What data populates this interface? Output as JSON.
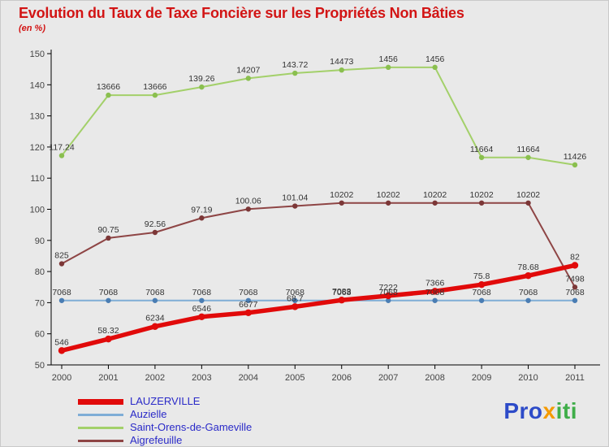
{
  "header": {
    "title": "Evolution du Taux de Taxe Foncière sur les Propriétés Non Bâties",
    "subtitle": "(en %)"
  },
  "chart_data": {
    "type": "line",
    "x": [
      2000,
      2001,
      2002,
      2003,
      2004,
      2005,
      2006,
      2007,
      2008,
      2009,
      2010,
      2011
    ],
    "ylim": [
      50,
      150
    ],
    "ytick_step": 10,
    "grid": false,
    "axis_color": "#000000",
    "label_color": "#333333",
    "series": [
      {
        "name": "Saint-Orens-de-Gameville",
        "color": "#a3d06a",
        "dot_color": "#8abf4f",
        "width": 2,
        "dot": 3.2,
        "values": [
          117.24,
          136.66,
          136.66,
          139.26,
          142.07,
          143.72,
          144.73,
          145.6,
          145.6,
          116.64,
          116.64,
          114.26
        ],
        "labels": [
          "117.24",
          "13666",
          "13666",
          "139.26",
          "14207",
          "143.72",
          "14473",
          "1456",
          "1456",
          "11664",
          "11664",
          "11426"
        ]
      },
      {
        "name": "Aigrefeuille",
        "color": "#8e4545",
        "dot_color": "#7c3737",
        "width": 2,
        "dot": 3.2,
        "values": [
          82.5,
          90.75,
          92.56,
          97.19,
          100.06,
          101.04,
          102.02,
          102.02,
          102.02,
          102.02,
          102.02,
          74.98
        ],
        "labels": [
          "825",
          "90.75",
          "92.56",
          "97.19",
          "100.06",
          "101.04",
          "10202",
          "10202",
          "10202",
          "10202",
          "10202",
          "7498"
        ]
      },
      {
        "name": "Auzielle",
        "color": "#7fadd6",
        "dot_color": "#4a7db3",
        "width": 2,
        "dot": 3.2,
        "values": [
          70.68,
          70.68,
          70.68,
          70.68,
          70.68,
          70.68,
          70.68,
          70.68,
          70.68,
          70.68,
          70.68,
          70.68
        ],
        "labels": [
          "7068",
          "7068",
          "7068",
          "7068",
          "7068",
          "7068",
          "7068",
          "7068",
          "7068",
          "7068",
          "7068",
          "7068"
        ]
      },
      {
        "name": "LAUZERVILLE",
        "color": "#e10a0a",
        "dot_color": "#e10a0a",
        "width": 5.5,
        "dot": 4.2,
        "values": [
          54.6,
          58.32,
          62.34,
          65.46,
          66.77,
          68.7,
          70.83,
          72.22,
          73.66,
          75.8,
          78.68,
          82
        ],
        "labels": [
          "546",
          "58.32",
          "6234",
          "6546",
          "6677",
          "68.7",
          "7083",
          "7222",
          "7366",
          "75.8",
          "78.68",
          "82"
        ]
      }
    ]
  },
  "legend": {
    "items": [
      {
        "label": "LAUZERVILLE",
        "color": "#e10a0a",
        "thick": true
      },
      {
        "label": "Auzielle",
        "color": "#7fadd6",
        "thick": false
      },
      {
        "label": "Saint-Orens-de-Gameville",
        "color": "#a3d06a",
        "thick": false
      },
      {
        "label": "Aigrefeuille",
        "color": "#8e4545",
        "thick": false
      }
    ]
  },
  "logo": {
    "parts": [
      {
        "text": "Pro",
        "color": "#2d4bc8"
      },
      {
        "text": "x",
        "color": "#f59a00"
      },
      {
        "text": "iti",
        "color": "#3fae49"
      }
    ]
  }
}
